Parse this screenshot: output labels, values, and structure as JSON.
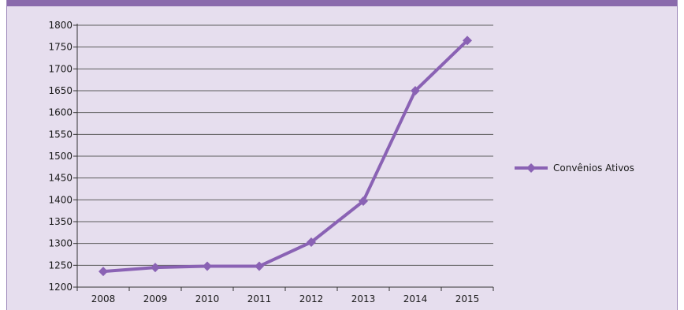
{
  "chart_data": {
    "type": "line",
    "title": "",
    "xlabel": "",
    "ylabel": "",
    "categories": [
      "2008",
      "2009",
      "2010",
      "2011",
      "2012",
      "2013",
      "2014",
      "2015"
    ],
    "series": [
      {
        "name": "Convênios Ativos",
        "values": [
          1236,
          1245,
          1248,
          1248,
          1303,
          1397,
          1650,
          1765
        ],
        "color": "#8a62b4",
        "marker": "diamond"
      }
    ],
    "ylim": [
      1200,
      1800
    ],
    "yticks": [
      1200,
      1250,
      1300,
      1350,
      1400,
      1450,
      1500,
      1550,
      1600,
      1650,
      1700,
      1750,
      1800
    ],
    "grid": true,
    "legend_position": "right"
  },
  "colors": {
    "background": "#e6deee",
    "title_bar": "#8a6aac",
    "grid": "#5c5c5c",
    "axis": "#333333"
  }
}
